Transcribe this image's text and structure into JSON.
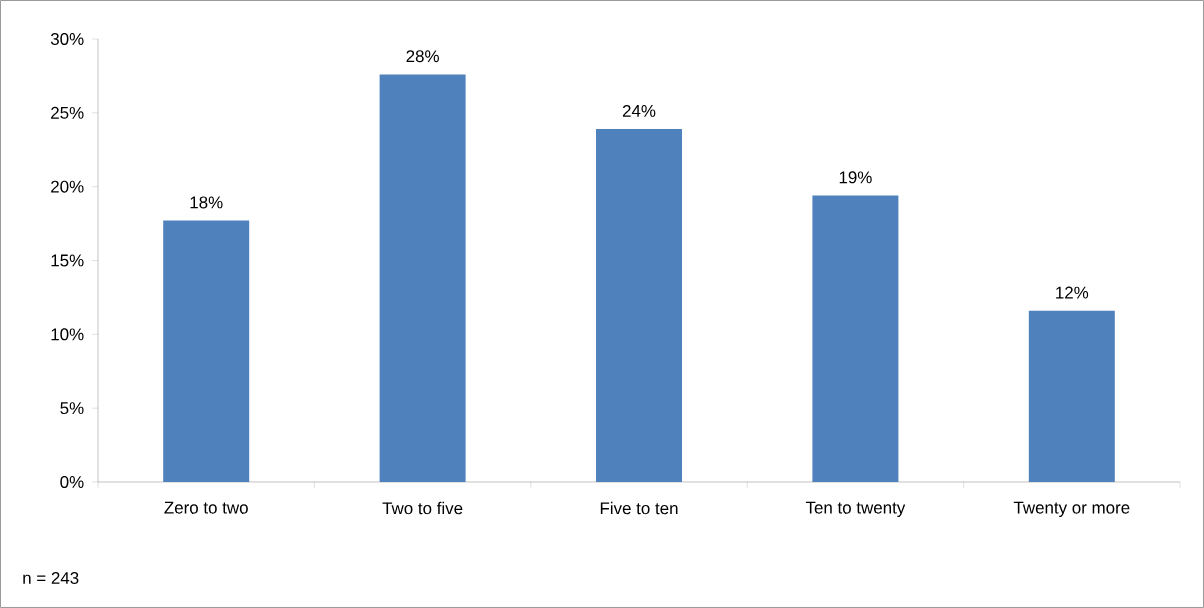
{
  "chart_data": {
    "type": "bar",
    "categories": [
      "Zero to two",
      "Two to five",
      "Five to ten",
      "Ten to twenty",
      "Twenty or more"
    ],
    "values": [
      17.7,
      27.6,
      23.9,
      19.4,
      11.6
    ],
    "value_labels": [
      "18%",
      "28%",
      "24%",
      "19%",
      "12%"
    ],
    "color": "#4f81bd",
    "ylim": [
      0,
      30
    ],
    "yticks": [
      {
        "value": 0,
        "label": "0%"
      },
      {
        "value": 5,
        "label": "5%"
      },
      {
        "value": 10,
        "label": "10%"
      },
      {
        "value": 15,
        "label": "15%"
      },
      {
        "value": 20,
        "label": "20%"
      },
      {
        "value": 25,
        "label": "25%"
      },
      {
        "value": 30,
        "label": "30%"
      }
    ],
    "grid": false,
    "legend": false,
    "annotations": [
      "n = 243"
    ]
  }
}
